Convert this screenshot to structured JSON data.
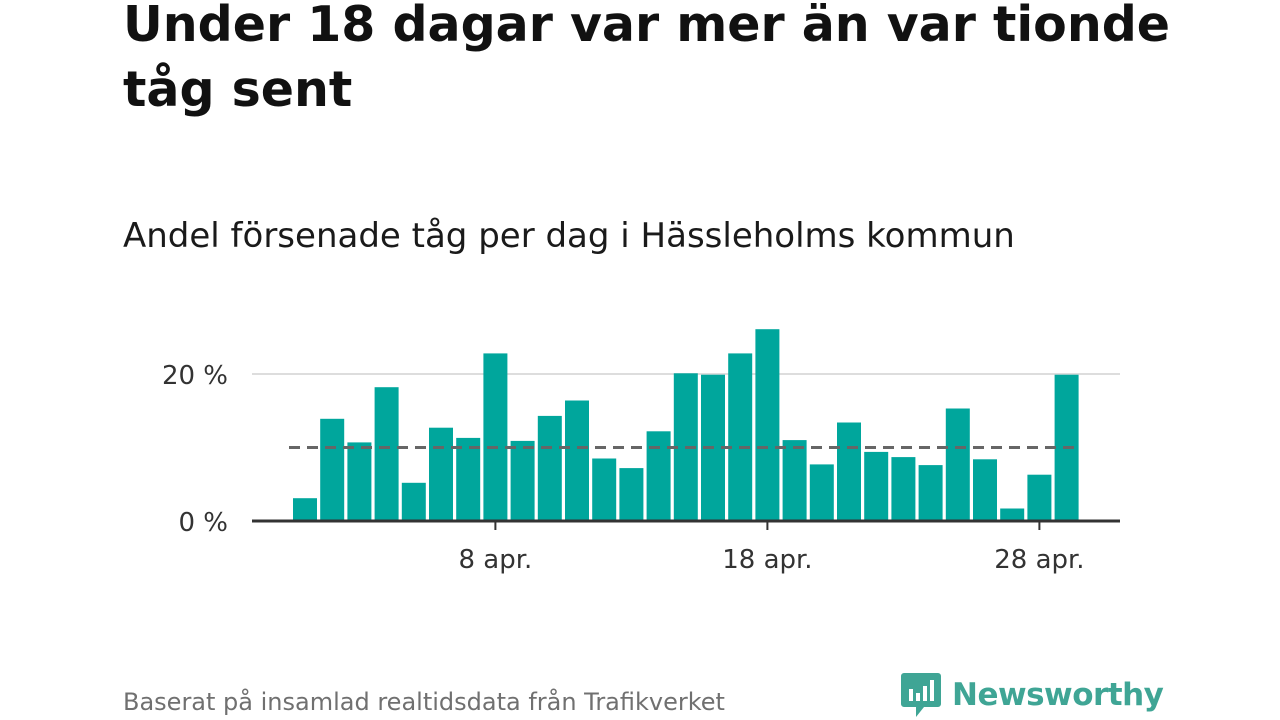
{
  "title": "Under 18 dagar var mer än var tionde tåg sent",
  "subtitle": "Andel försenade tåg per dag i Hässleholms kommun",
  "source": "Baserat på insamlad realtidsdata från Trafikverket",
  "logo": {
    "text": "Newsworthy",
    "icon": "newsworthy-chart-bubble-icon",
    "color": "#3fa595"
  },
  "colors": {
    "bar": "#00a69c",
    "average_line": "#666666",
    "grid": "#dddddd",
    "axis": "#333333"
  },
  "chart_data": {
    "type": "bar",
    "title": "Andel försenade tåg per dag i Hässleholms kommun",
    "xlabel": "",
    "ylabel": "",
    "categories": [
      "1 apr.",
      "2 apr.",
      "3 apr.",
      "4 apr.",
      "5 apr.",
      "6 apr.",
      "7 apr.",
      "8 apr.",
      "9 apr.",
      "10 apr.",
      "11 apr.",
      "12 apr.",
      "13 apr.",
      "14 apr.",
      "15 apr.",
      "16 apr.",
      "17 apr.",
      "18 apr.",
      "19 apr.",
      "20 apr.",
      "21 apr.",
      "22 apr.",
      "23 apr.",
      "24 apr.",
      "25 apr.",
      "26 apr.",
      "27 apr.",
      "28 apr.",
      "29 apr."
    ],
    "values": [
      3.1,
      13.9,
      10.7,
      18.2,
      5.2,
      12.7,
      11.3,
      22.8,
      10.9,
      14.3,
      16.4,
      8.5,
      7.2,
      12.2,
      20.1,
      19.9,
      22.8,
      26.1,
      11.0,
      7.7,
      13.4,
      9.4,
      8.7,
      7.6,
      15.3,
      8.4,
      1.7,
      6.3,
      19.9
    ],
    "average": 10.0,
    "ylim": [
      0,
      27
    ],
    "yticks": [
      {
        "value": 0,
        "label": "0 %"
      },
      {
        "value": 20,
        "label": "20 %"
      }
    ],
    "xticks": [
      {
        "category": "8 apr.",
        "label": "8 apr."
      },
      {
        "category": "18 apr.",
        "label": "18 apr."
      },
      {
        "category": "28 apr.",
        "label": "28 apr."
      }
    ],
    "grid": true
  }
}
